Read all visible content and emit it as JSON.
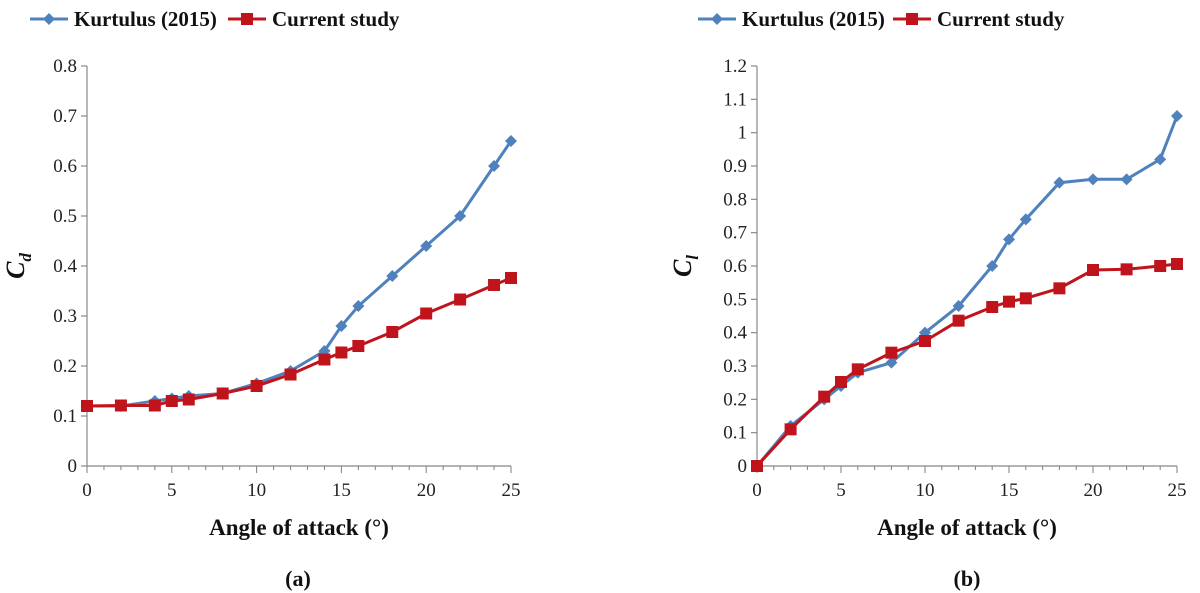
{
  "colors": {
    "kurtulus": "#4F81BD",
    "current": "#C0141C",
    "axis": "#888888"
  },
  "chart_data": [
    {
      "type": "line",
      "panel_label": "(a)",
      "xlabel": "Angle of attack (°)",
      "ylabel_main": "C",
      "ylabel_sub": "d",
      "xlim": [
        0,
        25
      ],
      "ylim": [
        0,
        0.8
      ],
      "xticks": [
        "0",
        "5",
        "10",
        "15",
        "20",
        "25"
      ],
      "yticks": [
        "0",
        "0.1",
        "0.2",
        "0.3",
        "0.4",
        "0.5",
        "0.6",
        "0.7",
        "0.8"
      ],
      "grid": false,
      "legend": "top",
      "series": [
        {
          "name": "Kurtulus (2015)",
          "marker": "diamond",
          "x": [
            0,
            2,
            4,
            5,
            6,
            8,
            10,
            12,
            14,
            15,
            16,
            18,
            20,
            22,
            24,
            25
          ],
          "y": [
            0.12,
            0.12,
            0.13,
            0.135,
            0.14,
            0.145,
            0.165,
            0.19,
            0.23,
            0.28,
            0.32,
            0.38,
            0.44,
            0.5,
            0.6,
            0.65
          ]
        },
        {
          "name": "Current study",
          "marker": "square",
          "x": [
            0,
            2,
            4,
            5,
            6,
            8,
            10,
            12,
            14,
            15,
            16,
            18,
            20,
            22,
            24,
            25
          ],
          "y": [
            0.12,
            0.121,
            0.121,
            0.13,
            0.133,
            0.145,
            0.16,
            0.183,
            0.213,
            0.227,
            0.24,
            0.268,
            0.305,
            0.333,
            0.362,
            0.376
          ]
        }
      ]
    },
    {
      "type": "line",
      "panel_label": "(b)",
      "xlabel": "Angle of attack (°)",
      "ylabel_main": "C",
      "ylabel_sub": "l",
      "xlim": [
        0,
        25
      ],
      "ylim": [
        0,
        1.2
      ],
      "xticks": [
        "0",
        "5",
        "10",
        "15",
        "20",
        "25"
      ],
      "yticks": [
        "0",
        "0.1",
        "0.2",
        "0.3",
        "0.4",
        "0.5",
        "0.6",
        "0.7",
        "0.8",
        "0.9",
        "1",
        "1.1",
        "1.2"
      ],
      "grid": false,
      "legend": "top",
      "series": [
        {
          "name": "Kurtulus (2015)",
          "marker": "diamond",
          "x": [
            0,
            2,
            4,
            5,
            6,
            8,
            10,
            12,
            14,
            15,
            16,
            18,
            20,
            22,
            24,
            25
          ],
          "y": [
            0,
            0.12,
            0.2,
            0.24,
            0.28,
            0.31,
            0.4,
            0.48,
            0.6,
            0.68,
            0.74,
            0.85,
            0.86,
            0.86,
            0.92,
            1.05
          ]
        },
        {
          "name": "Current study",
          "marker": "square",
          "x": [
            0,
            2,
            4,
            5,
            6,
            8,
            10,
            12,
            14,
            15,
            16,
            18,
            20,
            22,
            24,
            25
          ],
          "y": [
            0,
            0.11,
            0.208,
            0.252,
            0.29,
            0.34,
            0.375,
            0.436,
            0.477,
            0.493,
            0.503,
            0.533,
            0.588,
            0.59,
            0.6,
            0.606
          ]
        }
      ]
    }
  ]
}
